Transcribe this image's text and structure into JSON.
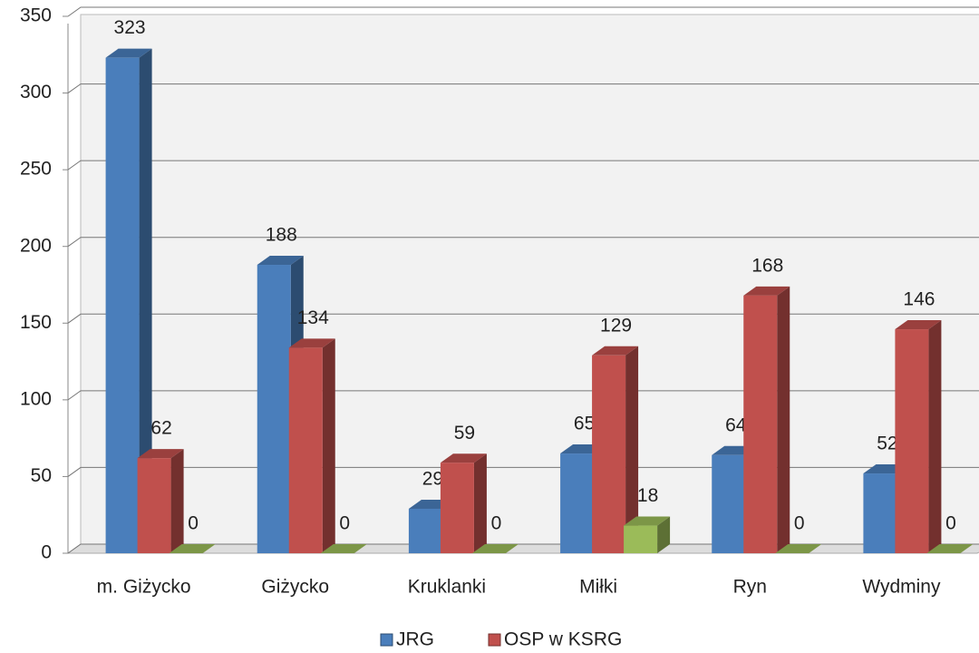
{
  "chart_data": {
    "type": "bar3d",
    "categories": [
      "m. Giżycko",
      "Giżycko",
      "Kruklanki",
      "Miłki",
      "Ryn",
      "Wydminy"
    ],
    "series": [
      {
        "name": "JRG",
        "color": "#4a7ebb",
        "values": [
          323,
          188,
          29,
          65,
          64,
          52
        ]
      },
      {
        "name": "OSP w KSRG",
        "color": "#c0504d",
        "values": [
          62,
          134,
          59,
          129,
          168,
          146
        ]
      },
      {
        "color": "#9bbb59",
        "values": [
          0,
          0,
          0,
          18,
          0,
          0
        ]
      }
    ],
    "ylim": [
      0,
      350
    ],
    "yticks": [
      0,
      50,
      100,
      150,
      200,
      250,
      300,
      350
    ],
    "grid": true
  }
}
